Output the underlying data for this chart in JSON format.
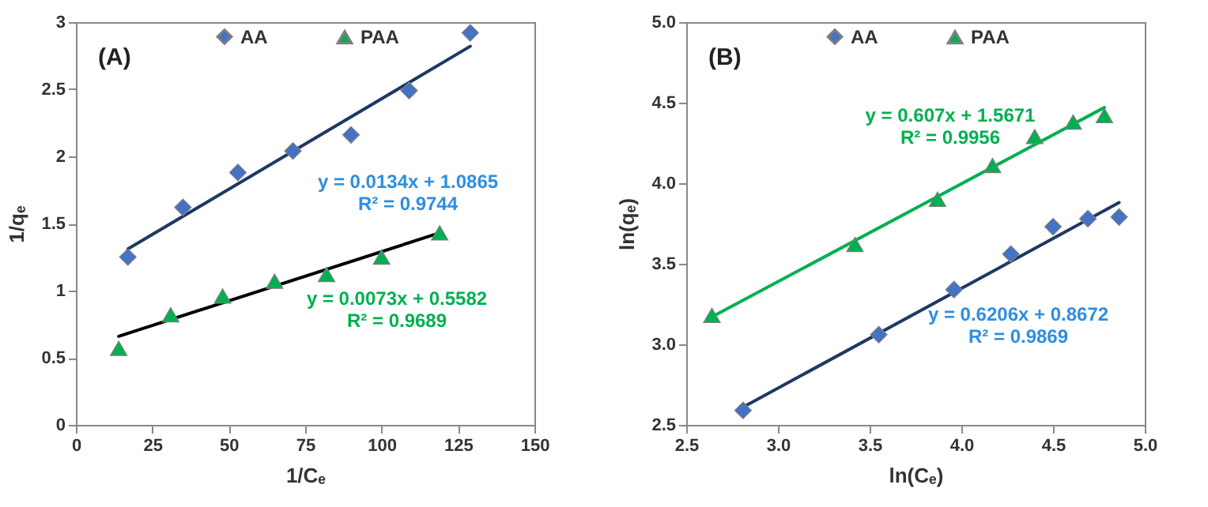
{
  "chart_data": [
    {
      "type": "scatter",
      "title": "(A)",
      "xlabel": "1/Cₑ",
      "ylabel": "1/qₑ",
      "xlim": [
        0,
        150
      ],
      "xticks": [
        0,
        25,
        50,
        75,
        100,
        125,
        150
      ],
      "ylim": [
        0,
        3
      ],
      "yticks": [
        0,
        0.5,
        1,
        1.5,
        2,
        2.5,
        3
      ],
      "grid": false,
      "legend": "top",
      "annotations": [
        "y = 0.0134x + 1.0865\nR² = 0.9744",
        "y = 0.0073x + 0.5582\nR² = 0.9689"
      ],
      "series": [
        {
          "name": "AA",
          "type": "scatter",
          "marker": "diamond",
          "color": "#4472c4",
          "x": [
            17,
            35,
            53,
            71,
            90,
            109,
            129
          ],
          "values": [
            1.25,
            1.62,
            1.88,
            2.04,
            2.16,
            2.49,
            2.92
          ]
        },
        {
          "name": "PAA",
          "type": "scatter",
          "marker": "triangle",
          "color": "#00b050",
          "x": [
            14,
            31,
            48,
            65,
            82,
            100,
            119
          ],
          "values": [
            0.57,
            0.82,
            0.96,
            1.07,
            1.12,
            1.25,
            1.43
          ]
        },
        {
          "type": "line",
          "marker": "none",
          "color": "#1f3864",
          "x": [
            17,
            129
          ],
          "values": [
            1.31,
            2.82
          ]
        },
        {
          "type": "line",
          "marker": "none",
          "color": "#000000",
          "x": [
            14,
            119
          ],
          "values": [
            0.66,
            1.43
          ]
        }
      ]
    },
    {
      "type": "scatter",
      "title": "(B)",
      "xlabel": "ln(Cₑ)",
      "ylabel": "ln(qₑ)",
      "xlim": [
        2.5,
        5
      ],
      "xticks": [
        2.5,
        {
          "value": 3,
          "label": "3.0"
        },
        3.5,
        {
          "value": 4,
          "label": "4.0"
        },
        4.5,
        {
          "value": 5,
          "label": "5.0"
        }
      ],
      "ylim": [
        2.5,
        5
      ],
      "yticks": [
        2.5,
        {
          "value": 3,
          "label": "3.0"
        },
        3.5,
        {
          "value": 4,
          "label": "4.0"
        },
        4.5,
        {
          "value": 5,
          "label": "5.0"
        }
      ],
      "grid": false,
      "legend": "top",
      "annotations": [
        "y = 0.607x + 1.5671\nR² = 0.9956",
        "y = 0.6206x + 0.8672\nR² = 0.9869"
      ],
      "series": [
        {
          "name": "AA",
          "type": "scatter",
          "marker": "diamond",
          "color": "#4472c4",
          "x": [
            2.81,
            3.55,
            3.96,
            4.27,
            4.5,
            4.69,
            4.86
          ],
          "values": [
            2.59,
            3.06,
            3.34,
            3.56,
            3.73,
            3.78,
            3.79
          ]
        },
        {
          "name": "PAA",
          "type": "scatter",
          "marker": "triangle",
          "color": "#00b050",
          "x": [
            2.64,
            3.42,
            3.87,
            4.17,
            4.4,
            4.61,
            4.78
          ],
          "values": [
            3.18,
            3.62,
            3.9,
            4.11,
            4.29,
            4.38,
            4.42
          ]
        },
        {
          "type": "line",
          "marker": "none",
          "color": "#00b050",
          "x": [
            2.64,
            4.78
          ],
          "values": [
            3.17,
            4.47
          ]
        },
        {
          "type": "line",
          "marker": "none",
          "color": "#1f3864",
          "x": [
            2.81,
            4.86
          ],
          "values": [
            2.61,
            3.88
          ]
        }
      ]
    }
  ]
}
